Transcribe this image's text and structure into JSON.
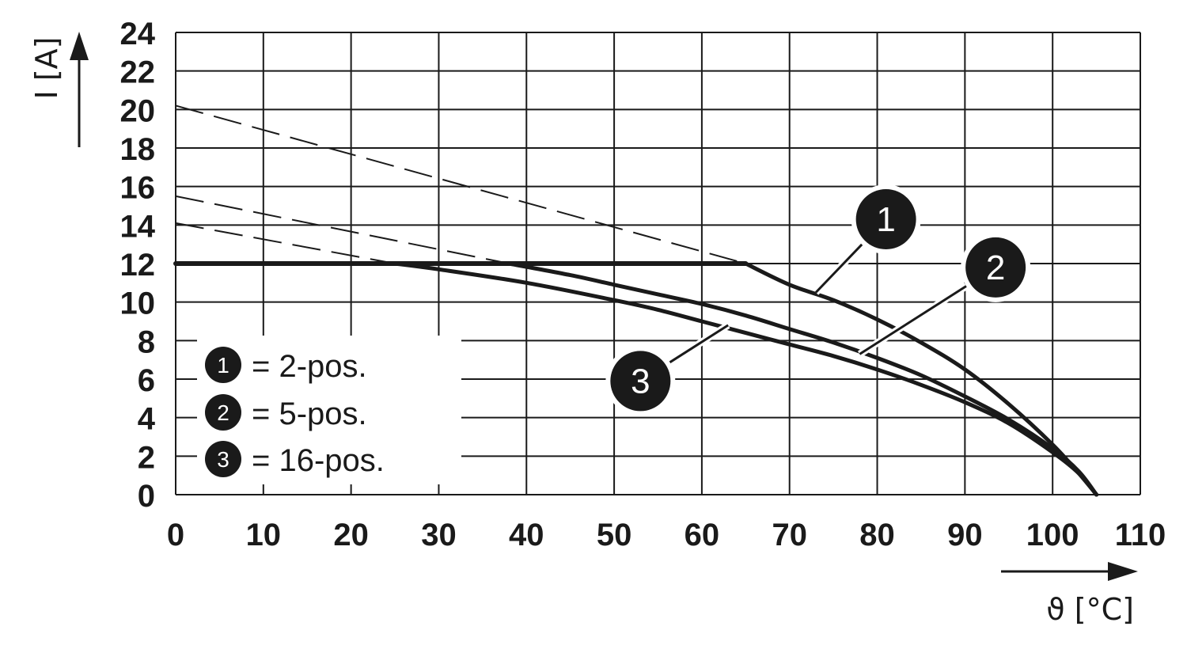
{
  "chart_data": {
    "type": "line",
    "xlabel": "ϑ [°C]",
    "ylabel": "I [A]",
    "xlim": [
      0,
      110
    ],
    "ylim": [
      0,
      24
    ],
    "x_ticks": [
      "0",
      "10",
      "20",
      "30",
      "40",
      "50",
      "60",
      "70",
      "80",
      "90",
      "100",
      "110"
    ],
    "y_ticks": [
      "0",
      "2",
      "4",
      "6",
      "8",
      "10",
      "12",
      "14",
      "16",
      "18",
      "20",
      "22",
      "24"
    ],
    "grid": true,
    "limit_line": {
      "value": 12,
      "x": [
        0,
        65
      ],
      "style": "solid"
    },
    "series": [
      {
        "name": "1",
        "x": [
          65,
          70,
          75,
          80,
          85,
          90,
          95,
          100,
          103,
          105
        ],
        "y": [
          12,
          10.9,
          10.1,
          9.1,
          7.9,
          6.5,
          4.7,
          2.6,
          1.1,
          0
        ]
      },
      {
        "name": "2",
        "x": [
          38,
          45,
          50,
          55,
          60,
          65,
          70,
          75,
          80,
          85,
          90,
          95,
          100,
          103,
          105
        ],
        "y": [
          12,
          11.4,
          10.9,
          10.4,
          9.9,
          9.3,
          8.6,
          7.9,
          7.1,
          6.2,
          5.1,
          3.9,
          2.4,
          1.2,
          0
        ]
      },
      {
        "name": "3",
        "x": [
          25,
          30,
          40,
          50,
          55,
          60,
          65,
          70,
          75,
          80,
          85,
          90,
          95,
          100,
          103,
          105
        ],
        "y": [
          12,
          11.7,
          11,
          10.1,
          9.6,
          9,
          8.4,
          7.8,
          7.2,
          6.5,
          5.7,
          4.8,
          3.7,
          2.2,
          1.1,
          0
        ]
      }
    ],
    "dashed_extensions": [
      {
        "name": "1",
        "x": [
          0,
          65
        ],
        "y": [
          20.2,
          12
        ]
      },
      {
        "name": "2",
        "x": [
          0,
          38
        ],
        "y": [
          15.5,
          12
        ]
      },
      {
        "name": "3",
        "x": [
          0,
          25
        ],
        "y": [
          14.1,
          12
        ]
      }
    ],
    "callouts": [
      {
        "label": "1",
        "x": 81,
        "y": 14.3,
        "target": [
          73,
          10.5
        ]
      },
      {
        "label": "2",
        "x": 93.5,
        "y": 11.8,
        "target": [
          78,
          7.3
        ]
      },
      {
        "label": "3",
        "x": 53,
        "y": 5.9,
        "target": [
          63,
          8.8
        ]
      }
    ],
    "legend": {
      "placement": "bottom-left",
      "entries": [
        {
          "badge": "1",
          "text": "= 2-pos."
        },
        {
          "badge": "2",
          "text": "= 5-pos."
        },
        {
          "badge": "3",
          "text": "= 16-pos."
        }
      ]
    }
  }
}
